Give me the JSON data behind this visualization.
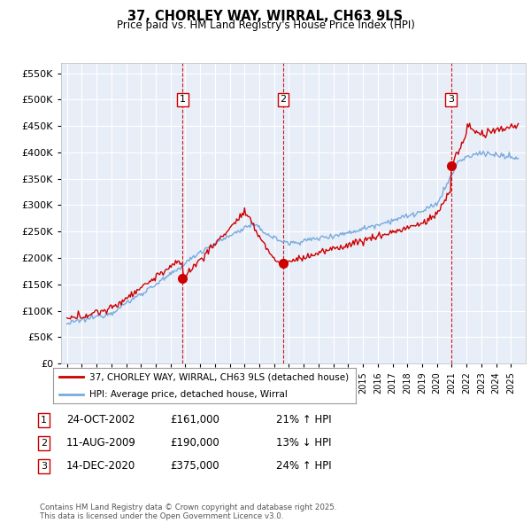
{
  "title": "37, CHORLEY WAY, WIRRAL, CH63 9LS",
  "subtitle": "Price paid vs. HM Land Registry's House Price Index (HPI)",
  "sale_color": "#cc0000",
  "hpi_color": "#7aaadd",
  "plot_bg": "#e8eef8",
  "ylim": [
    0,
    570000
  ],
  "yticks": [
    0,
    50000,
    100000,
    150000,
    200000,
    250000,
    300000,
    350000,
    400000,
    450000,
    500000,
    550000
  ],
  "vline_x": [
    2002.81,
    2009.61,
    2020.95
  ],
  "sale_prices": [
    161000,
    190000,
    375000
  ],
  "legend_entries": [
    "37, CHORLEY WAY, WIRRAL, CH63 9LS (detached house)",
    "HPI: Average price, detached house, Wirral"
  ],
  "table_rows": [
    [
      "1",
      "24-OCT-2002",
      "£161,000",
      "21% ↑ HPI"
    ],
    [
      "2",
      "11-AUG-2009",
      "£190,000",
      "13% ↓ HPI"
    ],
    [
      "3",
      "14-DEC-2020",
      "£375,000",
      "24% ↑ HPI"
    ]
  ],
  "footer": "Contains HM Land Registry data © Crown copyright and database right 2025.\nThis data is licensed under the Open Government Licence v3.0."
}
